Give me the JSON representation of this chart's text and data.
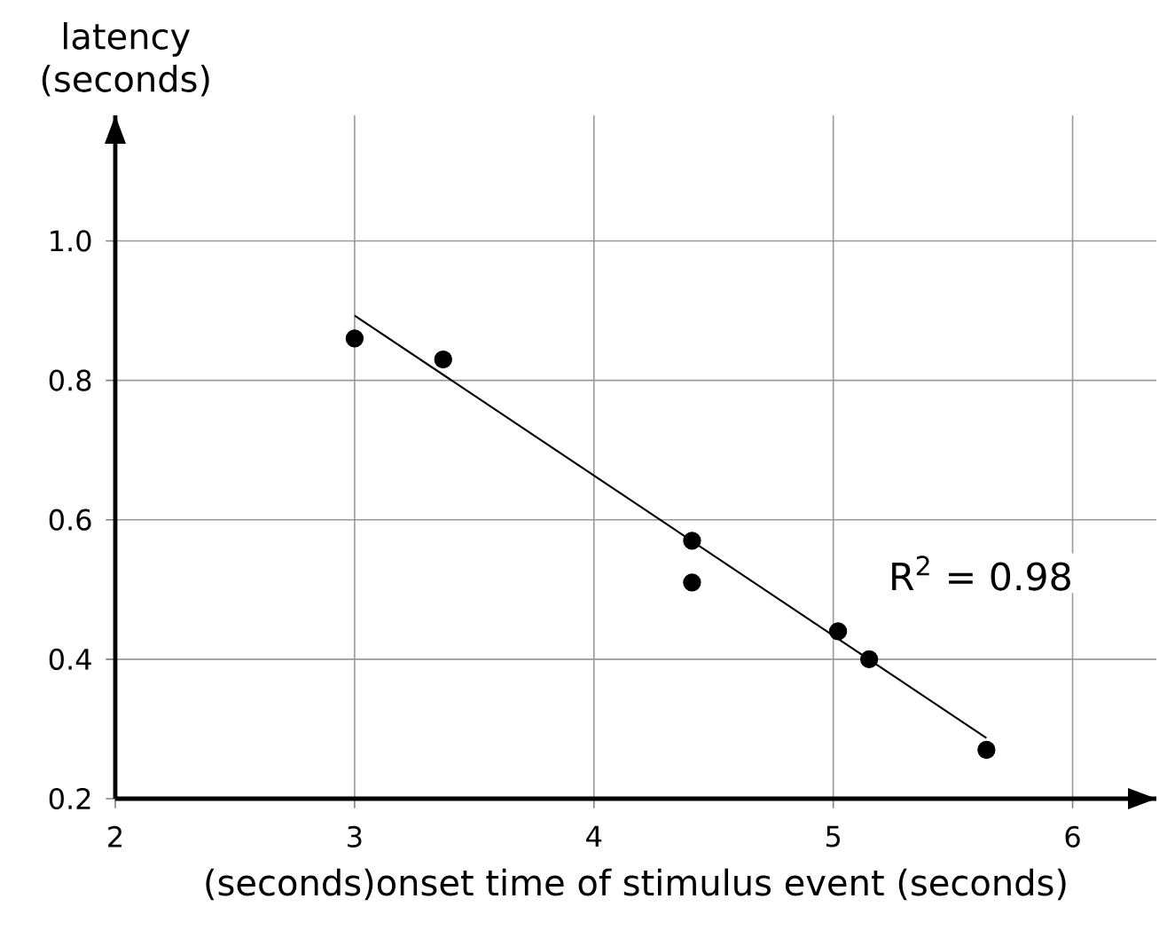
{
  "chart_data": {
    "type": "scatter",
    "xlabel": "(seconds)onset time of stimulus event (seconds)",
    "ylabel": "latency (seconds)",
    "annotations": [
      "R$^{2}$ = 0.98"
    ],
    "series": [
      {
        "type": "scatter",
        "color": "#000000",
        "x": [
          3.0,
          3.37,
          4.41,
          4.41,
          5.02,
          5.15,
          5.64
        ],
        "values": [
          0.86,
          0.83,
          0.57,
          0.51,
          0.44,
          0.4,
          0.27
        ],
        "marker": "circle"
      },
      {
        "type": "line",
        "color": "#000000",
        "x": [
          3.0,
          5.64
        ],
        "values": [
          0.893,
          0.287
        ],
        "marker": "none",
        "line_style": "solid"
      }
    ],
    "xlim": [
      2,
      6.35
    ],
    "ylim": [
      0.2,
      1.18
    ],
    "xticks": [
      2,
      3,
      4,
      5,
      6
    ],
    "yticks": [
      0.2,
      0.4,
      0.6,
      0.8,
      {
        "value": 1.0,
        "label": "1.0"
      }
    ],
    "grid": true
  }
}
